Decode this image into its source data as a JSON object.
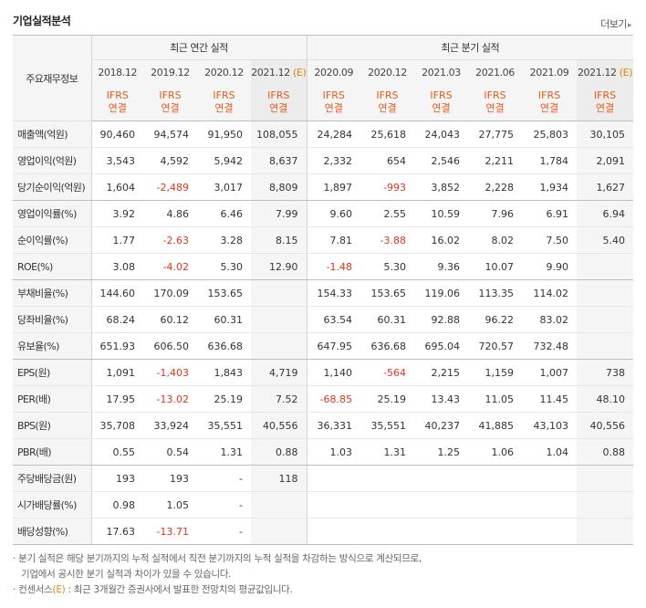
{
  "section_title": "기업실적분석",
  "more_link": "더보기",
  "header": {
    "label": "주요재무정보",
    "annual_group": "최근 연간 실적",
    "quarter_group": "최근 분기 실적",
    "annual_periods": [
      {
        "label": "2018.12",
        "est": ""
      },
      {
        "label": "2019.12",
        "est": ""
      },
      {
        "label": "2020.12",
        "est": ""
      },
      {
        "label": "2021.12",
        "est": "(E)"
      }
    ],
    "quarter_periods": [
      {
        "label": "2020.09",
        "est": ""
      },
      {
        "label": "2020.12",
        "est": ""
      },
      {
        "label": "2021.03",
        "est": ""
      },
      {
        "label": "2021.06",
        "est": ""
      },
      {
        "label": "2021.09",
        "est": ""
      },
      {
        "label": "2021.12",
        "est": "(E)"
      }
    ],
    "basis_line1": "IFRS",
    "basis_line2": "연결"
  },
  "rows": [
    {
      "label": "매출액(억원)",
      "values": [
        "90,460",
        "94,574",
        "91,950",
        "108,055",
        "24,284",
        "25,618",
        "24,043",
        "27,775",
        "25,803",
        "30,105"
      ]
    },
    {
      "label": "영업이익(억원)",
      "values": [
        "3,543",
        "4,592",
        "5,942",
        "8,637",
        "2,332",
        "654",
        "2,546",
        "2,211",
        "1,784",
        "2,091"
      ]
    },
    {
      "label": "당기순이익(억원)",
      "values": [
        "1,604",
        "-2,489",
        "3,017",
        "8,809",
        "1,897",
        "-993",
        "3,852",
        "2,228",
        "1,934",
        "1,627"
      ]
    },
    {
      "label": "영업이익률(%)",
      "values": [
        "3.92",
        "4.86",
        "6.46",
        "7.99",
        "9.60",
        "2.55",
        "10.59",
        "7.96",
        "6.91",
        "6.94"
      ]
    },
    {
      "label": "순이익률(%)",
      "values": [
        "1.77",
        "-2.63",
        "3.28",
        "8.15",
        "7.81",
        "-3.88",
        "16.02",
        "8.02",
        "7.50",
        "5.40"
      ]
    },
    {
      "label": "ROE(%)",
      "values": [
        "3.08",
        "-4.02",
        "5.30",
        "12.90",
        "-1.48",
        "5.30",
        "9.36",
        "10.07",
        "9.90",
        ""
      ]
    },
    {
      "label": "부채비율(%)",
      "values": [
        "144.60",
        "170.09",
        "153.65",
        "",
        "154.33",
        "153.65",
        "119.06",
        "113.35",
        "114.02",
        ""
      ]
    },
    {
      "label": "당좌비율(%)",
      "values": [
        "68.24",
        "60.12",
        "60.31",
        "",
        "63.54",
        "60.31",
        "92.88",
        "96.22",
        "83.02",
        ""
      ]
    },
    {
      "label": "유보율(%)",
      "values": [
        "651.93",
        "606.50",
        "636.68",
        "",
        "647.95",
        "636.68",
        "695.04",
        "720.57",
        "732.48",
        ""
      ]
    },
    {
      "label": "EPS(원)",
      "values": [
        "1,091",
        "-1,403",
        "1,843",
        "4,719",
        "1,140",
        "-564",
        "2,215",
        "1,159",
        "1,007",
        "738"
      ]
    },
    {
      "label": "PER(배)",
      "values": [
        "17.95",
        "-13.02",
        "25.19",
        "7.52",
        "-68.85",
        "25.19",
        "13.43",
        "11.05",
        "11.45",
        "48.10"
      ]
    },
    {
      "label": "BPS(원)",
      "values": [
        "35,708",
        "33,924",
        "35,551",
        "40,556",
        "36,331",
        "35,551",
        "40,237",
        "41,885",
        "43,103",
        "40,556"
      ]
    },
    {
      "label": "PBR(배)",
      "values": [
        "0.55",
        "0.54",
        "1.31",
        "0.88",
        "1.03",
        "1.31",
        "1.25",
        "1.06",
        "1.04",
        "0.88"
      ]
    },
    {
      "label": "주당배당금(원)",
      "values": [
        "193",
        "193",
        "-",
        "118",
        "",
        "",
        "",
        "",
        "",
        ""
      ]
    },
    {
      "label": "시가배당률(%)",
      "values": [
        "0.98",
        "1.05",
        "-",
        "",
        "",
        "",
        "",
        "",
        "",
        ""
      ]
    },
    {
      "label": "배당성향(%)",
      "values": [
        "17.63",
        "-13.71",
        "-",
        "",
        "",
        "",
        "",
        "",
        "",
        ""
      ]
    }
  ],
  "notes": {
    "note1_line1": "분기 실적은 해당 분기까지의 누적 실적에서 직전 분기까지의 누적 실적을 차감하는 방식으로 계산되므로,",
    "note1_line2": "기업에서 공시한 분기 실적과 차이가 있을 수 있습니다.",
    "note2_prefix": "컨센서스",
    "note2_est": "(E)",
    "note2_text": " : 최근 3개월간 증권사에서 발표한 전망치의 평균값입니다."
  }
}
